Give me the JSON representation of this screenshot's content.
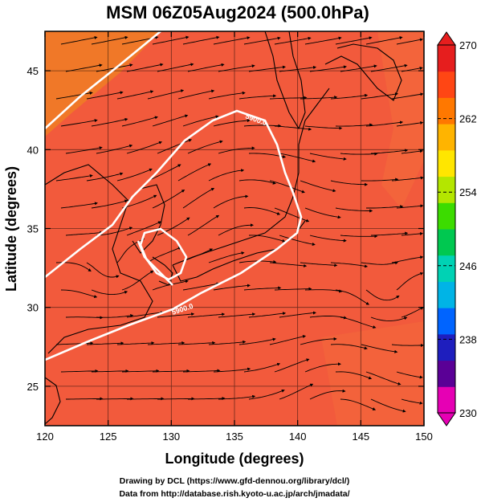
{
  "title": "MSM 06Z05Aug2024 (500.0hPa)",
  "xaxis": {
    "label": "Longitude (degrees)",
    "ticks": [
      120,
      125,
      130,
      135,
      140,
      145,
      150
    ],
    "range": [
      120,
      150
    ]
  },
  "yaxis": {
    "label": "Latitude  (degrees)",
    "ticks": [
      25,
      30,
      35,
      40,
      45
    ],
    "range": [
      22.5,
      47.5
    ]
  },
  "colorbar": {
    "ticks": [
      270,
      262,
      254,
      246,
      238,
      230
    ],
    "range": [
      230,
      270
    ],
    "colors": [
      "#e600b4",
      "#5a0096",
      "#1e1ebe",
      "#0064ff",
      "#00b4e6",
      "#00d2b4",
      "#00c850",
      "#3cdc00",
      "#b4e600",
      "#ffe600",
      "#ffb400",
      "#ff7800",
      "#ff4614",
      "#e61e1e"
    ]
  },
  "field": {
    "base_color": "#f25a3c",
    "warm_color": "#f07828"
  },
  "contours": [
    {
      "label": "5900.0"
    },
    {
      "label": "5900.0"
    }
  ],
  "credits": [
    "Drawing by DCL (https://www.gfd-dennou.org/library/dcl/)",
    "Data from http://database.rish.kyoto-u.ac.jp/arch/jmadata/"
  ]
}
